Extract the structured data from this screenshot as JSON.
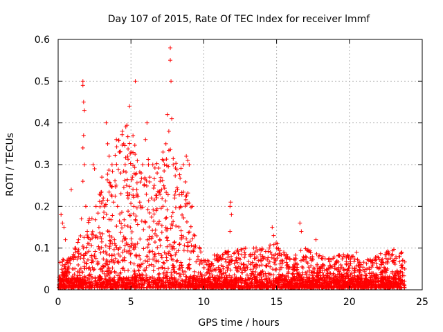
{
  "chart_data": {
    "type": "scatter",
    "title": "Day 107 of 2015, Rate Of TEC Index for receiver lmmf",
    "xlabel": "GPS time / hours",
    "ylabel": "ROTI / TECUs",
    "xlim": [
      0,
      25
    ],
    "ylim": [
      0,
      0.6
    ],
    "xticks": [
      0,
      5,
      10,
      15,
      20,
      25
    ],
    "yticks": [
      0,
      0.1,
      0.2,
      0.3,
      0.4,
      0.5,
      0.6
    ],
    "xtick_labels": [
      "0",
      "5",
      "10",
      "15",
      "20",
      "25"
    ],
    "ytick_labels": [
      "0",
      "0.1",
      "0.2",
      "0.3",
      "0.4",
      "0.5",
      "0.6"
    ],
    "grid": true,
    "marker": "+",
    "colors": {
      "series": "#ff0000",
      "grid": "#b0b0b0",
      "axis": "#000000"
    },
    "series": [
      {
        "name": "ROTI",
        "points": [
          [
            0.1,
            0.02
          ],
          [
            0.2,
            0.18
          ],
          [
            0.3,
            0.16
          ],
          [
            0.4,
            0.15
          ],
          [
            0.5,
            0.12
          ],
          [
            0.6,
            0.07
          ],
          [
            0.8,
            0.07
          ],
          [
            0.9,
            0.24
          ],
          [
            1.0,
            0.05
          ],
          [
            1.2,
            0.1
          ],
          [
            1.4,
            0.12
          ],
          [
            1.6,
            0.17
          ],
          [
            1.7,
            0.5
          ],
          [
            1.7,
            0.49
          ],
          [
            1.75,
            0.45
          ],
          [
            1.8,
            0.43
          ],
          [
            1.75,
            0.37
          ],
          [
            1.7,
            0.34
          ],
          [
            1.8,
            0.3
          ],
          [
            1.7,
            0.26
          ],
          [
            1.9,
            0.2
          ],
          [
            2.0,
            0.14
          ],
          [
            2.2,
            0.12
          ],
          [
            2.4,
            0.3
          ],
          [
            2.5,
            0.29
          ],
          [
            2.6,
            0.2
          ],
          [
            2.8,
            0.15
          ],
          [
            3.0,
            0.27
          ],
          [
            3.1,
            0.22
          ],
          [
            3.3,
            0.4
          ],
          [
            3.4,
            0.35
          ],
          [
            3.5,
            0.32
          ],
          [
            3.6,
            0.25
          ],
          [
            3.7,
            0.3
          ],
          [
            3.8,
            0.21
          ],
          [
            4.0,
            0.36
          ],
          [
            4.2,
            0.33
          ],
          [
            4.3,
            0.28
          ],
          [
            4.4,
            0.38
          ],
          [
            4.5,
            0.35
          ],
          [
            4.6,
            0.3
          ],
          [
            4.7,
            0.25
          ],
          [
            4.8,
            0.22
          ],
          [
            4.9,
            0.44
          ],
          [
            5.0,
            0.33
          ],
          [
            5.1,
            0.27
          ],
          [
            5.2,
            0.2
          ],
          [
            5.3,
            0.5
          ],
          [
            5.4,
            0.24
          ],
          [
            5.6,
            0.21
          ],
          [
            5.7,
            0.28
          ],
          [
            5.8,
            0.3
          ],
          [
            5.9,
            0.25
          ],
          [
            6.0,
            0.36
          ],
          [
            6.1,
            0.4
          ],
          [
            6.2,
            0.3
          ],
          [
            6.3,
            0.27
          ],
          [
            6.4,
            0.22
          ],
          [
            6.5,
            0.3
          ],
          [
            6.6,
            0.25
          ],
          [
            6.8,
            0.28
          ],
          [
            7.0,
            0.26
          ],
          [
            7.1,
            0.24
          ],
          [
            7.2,
            0.33
          ],
          [
            7.3,
            0.3
          ],
          [
            7.4,
            0.35
          ],
          [
            7.5,
            0.42
          ],
          [
            7.6,
            0.38
          ],
          [
            7.7,
            0.58
          ],
          [
            7.7,
            0.55
          ],
          [
            7.75,
            0.5
          ],
          [
            7.8,
            0.41
          ],
          [
            7.9,
            0.3
          ],
          [
            8.0,
            0.22
          ],
          [
            8.2,
            0.24
          ],
          [
            8.4,
            0.2
          ],
          [
            8.6,
            0.3
          ],
          [
            8.8,
            0.32
          ],
          [
            8.9,
            0.31
          ],
          [
            9.0,
            0.3
          ],
          [
            9.2,
            0.2
          ],
          [
            9.4,
            0.1
          ],
          [
            9.6,
            0.08
          ],
          [
            10.0,
            0.07
          ],
          [
            10.4,
            0.06
          ],
          [
            11.0,
            0.07
          ],
          [
            11.5,
            0.09
          ],
          [
            11.8,
            0.2
          ],
          [
            11.85,
            0.21
          ],
          [
            11.9,
            0.18
          ],
          [
            11.8,
            0.14
          ],
          [
            12.2,
            0.07
          ],
          [
            12.8,
            0.09
          ],
          [
            13.2,
            0.08
          ],
          [
            13.6,
            0.06
          ],
          [
            14.0,
            0.08
          ],
          [
            14.5,
            0.1
          ],
          [
            14.7,
            0.15
          ],
          [
            14.8,
            0.13
          ],
          [
            15.0,
            0.1
          ],
          [
            15.4,
            0.07
          ],
          [
            15.8,
            0.05
          ],
          [
            16.2,
            0.06
          ],
          [
            16.6,
            0.16
          ],
          [
            16.7,
            0.14
          ],
          [
            17.0,
            0.08
          ],
          [
            17.4,
            0.07
          ],
          [
            17.7,
            0.12
          ],
          [
            18.2,
            0.06
          ],
          [
            18.6,
            0.05
          ],
          [
            19.0,
            0.06
          ],
          [
            19.4,
            0.05
          ],
          [
            19.8,
            0.06
          ],
          [
            20.2,
            0.08
          ],
          [
            20.5,
            0.09
          ],
          [
            20.8,
            0.06
          ],
          [
            21.2,
            0.05
          ],
          [
            21.6,
            0.07
          ],
          [
            21.9,
            0.08
          ],
          [
            22.2,
            0.06
          ],
          [
            22.6,
            0.05
          ],
          [
            23.0,
            0.07
          ],
          [
            23.4,
            0.08
          ],
          [
            23.6,
            0.09
          ],
          [
            23.8,
            0.05
          ]
        ]
      }
    ],
    "envelope": [
      [
        0.0,
        0.04
      ],
      [
        1.0,
        0.05
      ],
      [
        1.5,
        0.08
      ],
      [
        2.0,
        0.1
      ],
      [
        2.5,
        0.12
      ],
      [
        3.0,
        0.15
      ],
      [
        3.5,
        0.18
      ],
      [
        4.0,
        0.22
      ],
      [
        4.5,
        0.25
      ],
      [
        5.0,
        0.24
      ],
      [
        5.5,
        0.2
      ],
      [
        6.0,
        0.2
      ],
      [
        6.5,
        0.18
      ],
      [
        7.0,
        0.2
      ],
      [
        7.5,
        0.22
      ],
      [
        8.0,
        0.2
      ],
      [
        8.5,
        0.18
      ],
      [
        9.0,
        0.14
      ],
      [
        9.5,
        0.07
      ],
      [
        10.0,
        0.05
      ],
      [
        11.0,
        0.05
      ],
      [
        12.0,
        0.06
      ],
      [
        13.0,
        0.06
      ],
      [
        14.0,
        0.06
      ],
      [
        15.0,
        0.07
      ],
      [
        16.0,
        0.05
      ],
      [
        17.0,
        0.06
      ],
      [
        18.0,
        0.05
      ],
      [
        19.0,
        0.05
      ],
      [
        20.0,
        0.05
      ],
      [
        21.0,
        0.04
      ],
      [
        22.0,
        0.05
      ],
      [
        23.0,
        0.06
      ],
      [
        23.8,
        0.05
      ]
    ]
  }
}
